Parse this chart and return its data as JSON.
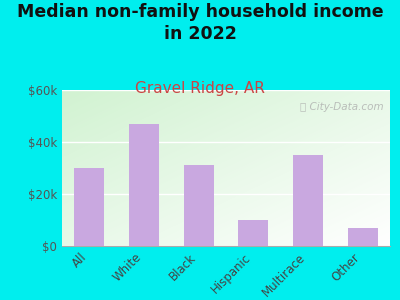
{
  "title": "Median non-family household income\nin 2022",
  "subtitle": "Gravel Ridge, AR",
  "categories": [
    "All",
    "White",
    "Black",
    "Hispanic",
    "Multirace",
    "Other"
  ],
  "values": [
    30000,
    47000,
    31000,
    10000,
    35000,
    7000
  ],
  "bar_color": "#c9a8e0",
  "title_fontsize": 12.5,
  "subtitle_fontsize": 11,
  "subtitle_color": "#cc4444",
  "background_color": "#00eeee",
  "ylim": [
    0,
    60000
  ],
  "yticks": [
    0,
    20000,
    40000,
    60000
  ],
  "ytick_labels": [
    "$0",
    "$20k",
    "$40k",
    "$60k"
  ],
  "watermark": "City-Data.com",
  "watermark_color": "#aaaaaa"
}
